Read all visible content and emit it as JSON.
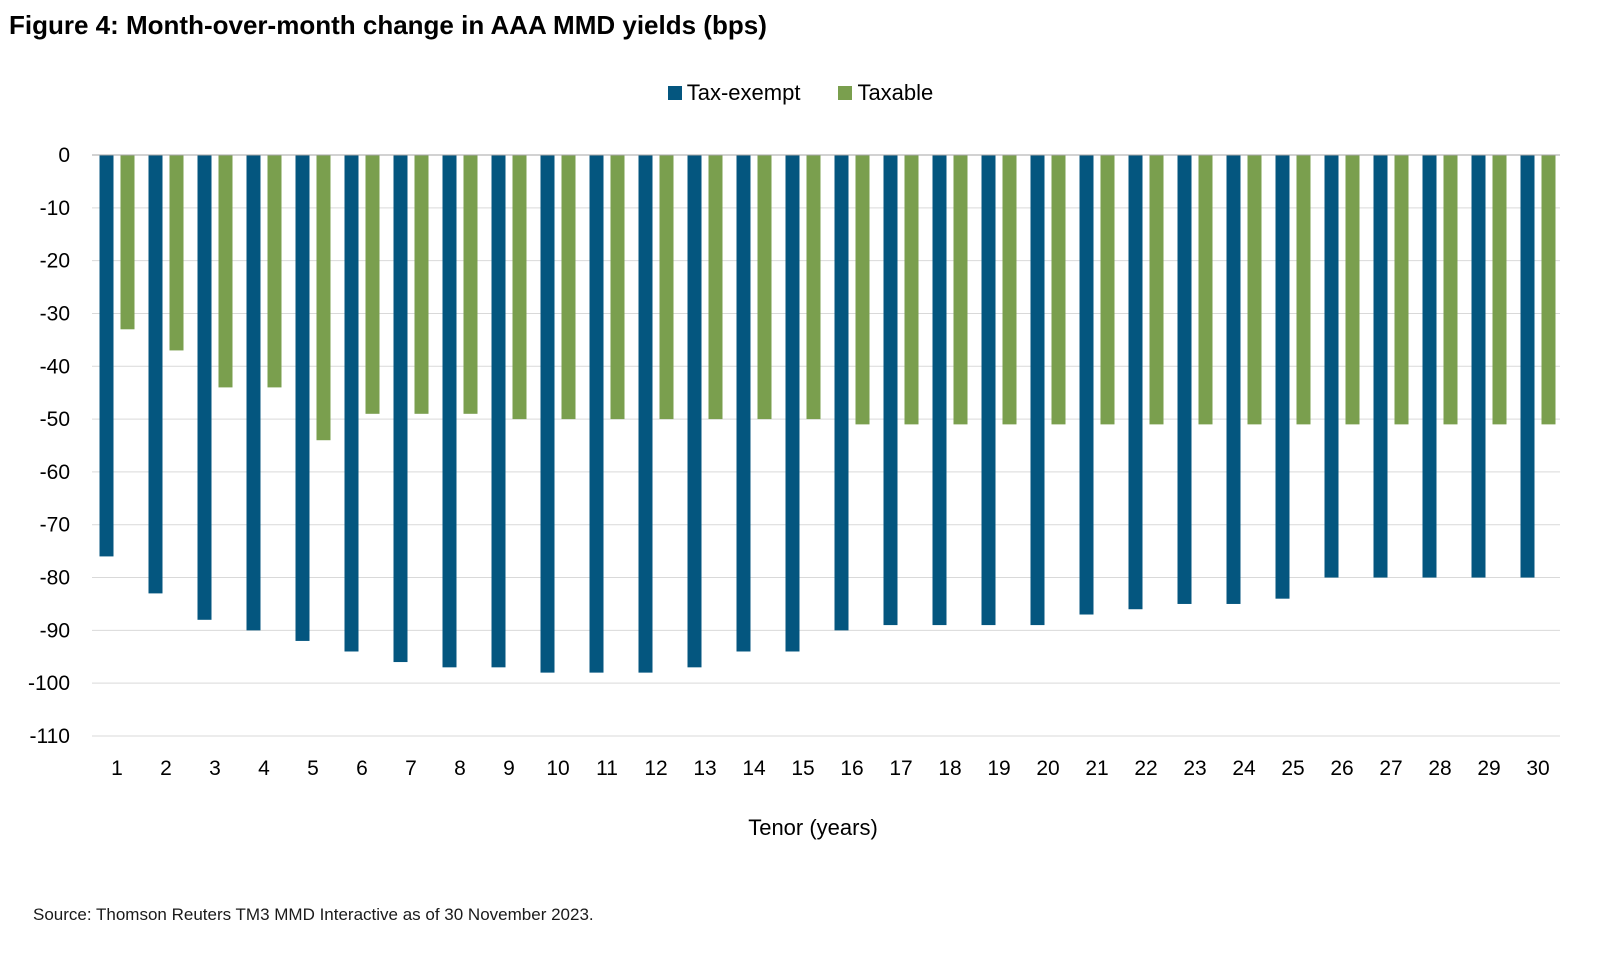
{
  "title": "Figure 4: Month-over-month change in AAA MMD yields (bps)",
  "source": "Source: Thomson Reuters TM3 MMD Interactive as of 30 November 2023.",
  "chart_data": {
    "type": "bar",
    "title": "Figure 4: Month-over-month change in AAA MMD yields (bps)",
    "xlabel": "Tenor (years)",
    "ylabel": "",
    "ylim": [
      -110,
      0
    ],
    "yticks": [
      0,
      -10,
      -20,
      -30,
      -40,
      -50,
      -60,
      -70,
      -80,
      -90,
      -100,
      -110
    ],
    "grid": true,
    "legend_position": "top-center",
    "categories": [
      "1",
      "2",
      "3",
      "4",
      "5",
      "6",
      "7",
      "8",
      "9",
      "10",
      "11",
      "12",
      "13",
      "14",
      "15",
      "16",
      "17",
      "18",
      "19",
      "20",
      "21",
      "22",
      "23",
      "24",
      "25",
      "26",
      "27",
      "28",
      "29",
      "30"
    ],
    "series": [
      {
        "name": "Tax-exempt",
        "color": "#04567F",
        "values": [
          -76,
          -83,
          -88,
          -90,
          -92,
          -94,
          -96,
          -97,
          -97,
          -98,
          -98,
          -98,
          -97,
          -94,
          -94,
          -90,
          -89,
          -89,
          -89,
          -89,
          -87,
          -86,
          -85,
          -85,
          -84,
          -80,
          -80,
          -80,
          -80,
          -80
        ]
      },
      {
        "name": "Taxable",
        "color": "#7A9F4E",
        "values": [
          -33,
          -37,
          -44,
          -44,
          -54,
          -49,
          -49,
          -49,
          -50,
          -50,
          -50,
          -50,
          -50,
          -50,
          -50,
          -51,
          -51,
          -51,
          -51,
          -51,
          -51,
          -51,
          -51,
          -51,
          -51,
          -51,
          -51,
          -51,
          -51,
          -51
        ]
      }
    ]
  }
}
